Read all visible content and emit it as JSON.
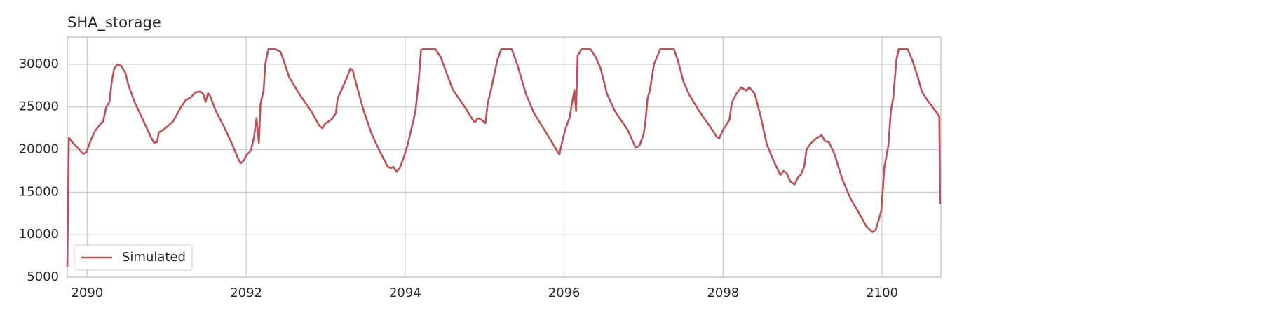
{
  "chart_data": {
    "type": "line",
    "title": "SHA_storage",
    "x": [
      2089.75,
      2089.77,
      2089.8,
      2089.85,
      2089.9,
      2089.95,
      2089.99,
      2090.05,
      2090.1,
      2090.15,
      2090.2,
      2090.24,
      2090.28,
      2090.31,
      2090.34,
      2090.38,
      2090.43,
      2090.48,
      2090.52,
      2090.6,
      2090.7,
      2090.8,
      2090.84,
      2090.88,
      2090.9,
      2090.97,
      2091.08,
      2091.18,
      2091.24,
      2091.3,
      2091.36,
      2091.42,
      2091.46,
      2091.49,
      2091.52,
      2091.55,
      2091.62,
      2091.72,
      2091.82,
      2091.9,
      2091.93,
      2091.97,
      2092.0,
      2092.06,
      2092.1,
      2092.13,
      2092.16,
      2092.18,
      2092.22,
      2092.24,
      2092.28,
      2092.36,
      2092.43,
      2092.47,
      2092.54,
      2092.67,
      2092.82,
      2092.92,
      2092.96,
      2092.99,
      2093.08,
      2093.13,
      2093.15,
      2093.2,
      2093.27,
      2093.31,
      2093.34,
      2093.39,
      2093.48,
      2093.58,
      2093.68,
      2093.78,
      2093.82,
      2093.85,
      2093.89,
      2093.93,
      2093.98,
      2094.03,
      2094.08,
      2094.13,
      2094.17,
      2094.2,
      2094.23,
      2094.38,
      2094.45,
      2094.5,
      2094.6,
      2094.75,
      2094.85,
      2094.88,
      2094.91,
      2094.96,
      2095.01,
      2095.04,
      2095.08,
      2095.16,
      2095.21,
      2095.34,
      2095.41,
      2095.52,
      2095.62,
      2095.74,
      2095.87,
      2095.94,
      2095.99,
      2096.02,
      2096.07,
      2096.1,
      2096.13,
      2096.15,
      2096.17,
      2096.22,
      2096.33,
      2096.4,
      2096.46,
      2096.54,
      2096.64,
      2096.8,
      2096.9,
      2096.95,
      2097.0,
      2097.02,
      2097.05,
      2097.08,
      2097.13,
      2097.21,
      2097.38,
      2097.43,
      2097.5,
      2097.57,
      2097.7,
      2097.85,
      2097.92,
      2097.95,
      2098.0,
      2098.08,
      2098.11,
      2098.17,
      2098.23,
      2098.29,
      2098.33,
      2098.4,
      2098.47,
      2098.55,
      2098.63,
      2098.72,
      2098.76,
      2098.8,
      2098.85,
      2098.9,
      2098.94,
      2098.98,
      2099.02,
      2099.05,
      2099.1,
      2099.17,
      2099.24,
      2099.28,
      2099.33,
      2099.4,
      2099.5,
      2099.6,
      2099.7,
      2099.8,
      2099.88,
      2099.92,
      2099.95,
      2099.99,
      2100.03,
      2100.08,
      2100.11,
      2100.14,
      2100.18,
      2100.21,
      2100.32,
      2100.38,
      2100.45,
      2100.5,
      2100.57,
      2100.65,
      2100.72,
      2100.73
    ],
    "series": [
      {
        "name": "Simulated",
        "color": "#c44e52",
        "values": [
          6200,
          21400,
          21000,
          20500,
          20000,
          19500,
          19700,
          21200,
          22200,
          22800,
          23300,
          25000,
          25600,
          28000,
          29500,
          30000,
          29800,
          29000,
          27500,
          25500,
          23500,
          21500,
          20800,
          20900,
          22000,
          22400,
          23300,
          25000,
          25800,
          26100,
          26700,
          26800,
          26500,
          25600,
          26600,
          26200,
          24500,
          22700,
          20700,
          18900,
          18400,
          18700,
          19300,
          19900,
          21500,
          23700,
          20800,
          25300,
          27000,
          30000,
          31800,
          31800,
          31500,
          30500,
          28500,
          26500,
          24500,
          22800,
          22500,
          23000,
          23600,
          24300,
          26000,
          27000,
          28500,
          29500,
          29300,
          27500,
          24500,
          21800,
          19800,
          18000,
          17800,
          18000,
          17400,
          17800,
          19000,
          20500,
          22500,
          24500,
          28000,
          31700,
          31800,
          31800,
          30800,
          29500,
          27000,
          25000,
          23500,
          23200,
          23700,
          23500,
          23100,
          25500,
          27000,
          30500,
          31800,
          31800,
          30000,
          26500,
          24300,
          22500,
          20500,
          19400,
          21500,
          22500,
          23800,
          25500,
          27000,
          24500,
          31000,
          31800,
          31800,
          30800,
          29500,
          26500,
          24500,
          22300,
          20200,
          20500,
          21800,
          23000,
          26000,
          27000,
          30000,
          31800,
          31800,
          30500,
          28000,
          26500,
          24500,
          22500,
          21500,
          21300,
          22300,
          23500,
          25500,
          26600,
          27300,
          26900,
          27300,
          26500,
          24000,
          20600,
          18800,
          17000,
          17500,
          17200,
          16200,
          15900,
          16700,
          17100,
          18000,
          20000,
          20700,
          21300,
          21700,
          21000,
          20900,
          19500,
          16500,
          14300,
          12700,
          11000,
          10300,
          10600,
          11500,
          12800,
          18000,
          20500,
          24500,
          26000,
          30500,
          31800,
          31800,
          30500,
          28500,
          26800,
          25800,
          24800,
          23900,
          13600
        ]
      }
    ],
    "xlim": [
      2089.75,
      2100.74
    ],
    "xticks": [
      2090,
      2092,
      2094,
      2096,
      2098,
      2100
    ],
    "ylim": [
      5000,
      33200
    ],
    "yticks": [
      5000,
      10000,
      15000,
      20000,
      25000,
      30000
    ],
    "grid": true,
    "legend": "lower left"
  }
}
